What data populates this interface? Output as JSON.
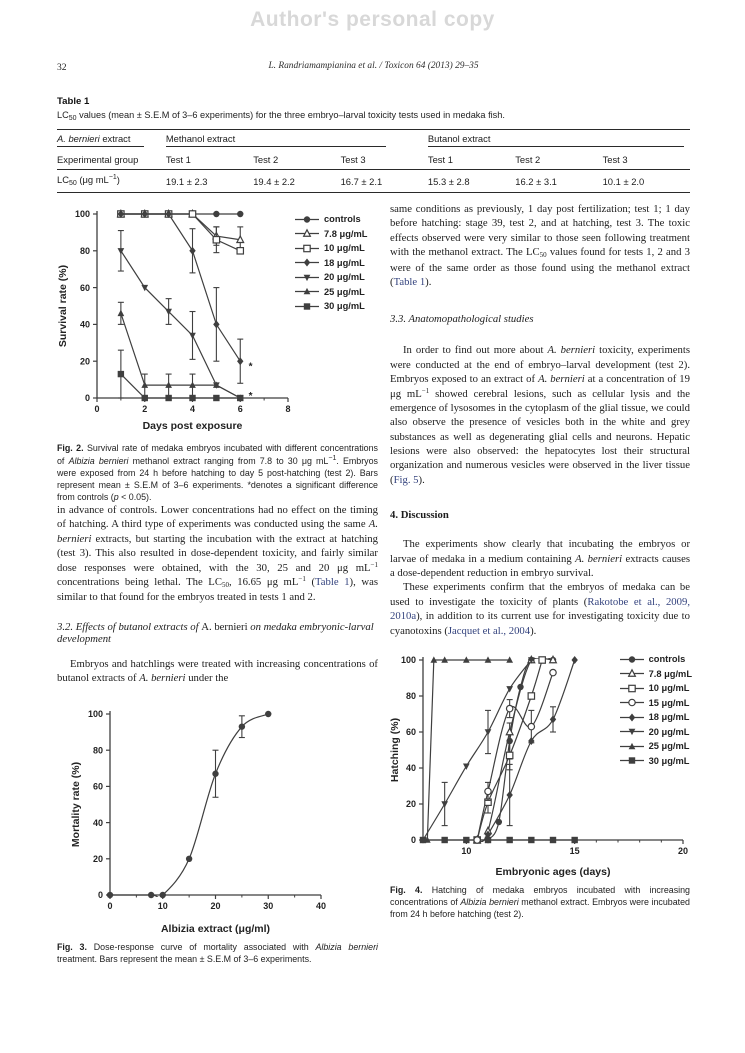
{
  "page": {
    "watermark": "Author's personal copy",
    "page_number": "32",
    "running_head": "L. Randriamampianina et al. / Toxicon 64 (2013) 29–35"
  },
  "table1": {
    "label": "Table 1",
    "caption": [
      {
        "t": "LC"
      },
      {
        "t": "50",
        "s": "sub"
      },
      {
        "t": " values (mean ± S.E.M of 3–6 experiments) for the three embryo–larval toxicity tests used in medaka fish."
      }
    ],
    "col0_header": [
      {
        "t": "A. bernieri",
        "s": "i"
      },
      {
        "t": " extract"
      }
    ],
    "group_methanol": "Methanol extract",
    "group_butanol": "Butanol extract",
    "sub_headers": [
      "Experimental group",
      "Test 1",
      "Test 2",
      "Test 3",
      "Test 1",
      "Test 2",
      "Test 3"
    ],
    "row_label": [
      {
        "t": "LC"
      },
      {
        "t": "50",
        "s": "sub"
      },
      {
        "t": " (μg mL"
      },
      {
        "t": "−1",
        "s": "sup"
      },
      {
        "t": ")"
      }
    ],
    "values": [
      "19.1 ± 2.3",
      "19.4 ± 2.2",
      "16.7 ± 2.1",
      "15.3 ± 2.8",
      "16.2 ± 3.1",
      "10.1 ± 2.0"
    ]
  },
  "left_col": {
    "fig2_caption": [
      {
        "t": "Fig. 2.",
        "s": "b"
      },
      {
        "t": " Survival rate of medaka embryos incubated with different concentrations of "
      },
      {
        "t": "Albizia bernieri",
        "s": "i"
      },
      {
        "t": " methanol extract ranging from 7.8 to 30 μg mL"
      },
      {
        "t": "−1",
        "s": "sup"
      },
      {
        "t": ". Embryos were exposed from 24 h before hatching to day 5 post-hatching (test 2). Bars represent mean ± S.E.M of 3–6 experiments. *denotes a significant difference from controls ("
      },
      {
        "t": "p",
        "s": "i"
      },
      {
        "t": " < 0.05)."
      }
    ],
    "para1": [
      {
        "t": "in advance of controls. Lower concentrations had no effect on the timing of hatching. A third type of experiments was conducted using the same "
      },
      {
        "t": "A. bernieri",
        "s": "i"
      },
      {
        "t": " extracts, but starting the incubation with the extract at hatching (test 3). This also resulted in dose-dependent toxicity, and fairly similar dose responses were obtained, with the 30, 25 and 20 μg mL"
      },
      {
        "t": "−1",
        "s": "sup"
      },
      {
        "t": " concentrations being lethal. The LC"
      },
      {
        "t": "50",
        "s": "sub"
      },
      {
        "t": ", 16.65 μg mL"
      },
      {
        "t": "−1",
        "s": "sup"
      },
      {
        "t": " ("
      },
      {
        "t": "Table 1",
        "s": "link"
      },
      {
        "t": "), was similar to that found for the embryos treated in tests 1 and 2."
      }
    ],
    "sec32_heading": [
      {
        "t": "3.2. Effects of butanol extracts of ",
        "s": "i"
      },
      {
        "t": "A. bernieri"
      },
      {
        "t": " on medaka embryonic-larval development",
        "s": "i"
      }
    ],
    "para2": [
      {
        "t": "Embryos and hatchlings were treated with increasing concentrations of butanol extracts of "
      },
      {
        "t": "A. bernieri",
        "s": "i"
      },
      {
        "t": " under the"
      }
    ],
    "fig3_caption": [
      {
        "t": "Fig. 3.",
        "s": "b"
      },
      {
        "t": " Dose-response curve of mortality associated with "
      },
      {
        "t": "Albizia bernieri",
        "s": "i"
      },
      {
        "t": " treatment. Bars represent the mean ± S.E.M of 3–6 experiments."
      }
    ]
  },
  "right_col": {
    "para1": [
      {
        "t": "same conditions as previously, 1 day post fertilization; test 1; 1 day before hatching: stage 39, test 2, and at hatching, test 3. The toxic effects observed were very similar to those seen following treatment with the methanol extract. The LC"
      },
      {
        "t": "50",
        "s": "sub"
      },
      {
        "t": " values found for tests 1, 2 and 3 were of the same order as those found using the methanol extract ("
      },
      {
        "t": "Table 1",
        "s": "link"
      },
      {
        "t": ")."
      }
    ],
    "sec33_heading": "3.3. Anatomopathological studies",
    "para2": [
      {
        "t": "In order to find out more about "
      },
      {
        "t": "A. bernieri",
        "s": "i"
      },
      {
        "t": " toxicity, experiments were conducted at the end of embryo–larval development (test 2). Embryos exposed to an extract of "
      },
      {
        "t": "A. bernieri",
        "s": "i"
      },
      {
        "t": " at a concentration of 19 μg mL"
      },
      {
        "t": "−1",
        "s": "sup"
      },
      {
        "t": " showed cerebral lesions, such as cellular lysis and the emergence of lysosomes in the cytoplasm of the glial tissue, we could also observe the presence of vesicles both in the white and grey substances as well as degenerating glial cells and neurons. Hepatic lesions were also observed: the hepatocytes lost their structural organization and numerous vesicles were observed in the liver tissue ("
      },
      {
        "t": "Fig. 5",
        "s": "link"
      },
      {
        "t": ")."
      }
    ],
    "sec4_heading": "4. Discussion",
    "para3": [
      {
        "t": "The experiments show clearly that incubating the embryos or larvae of medaka in a medium containing "
      },
      {
        "t": "A. bernieri",
        "s": "i"
      },
      {
        "t": " extracts causes a dose-dependent reduction in embryo survival."
      }
    ],
    "para4": [
      {
        "t": "These experiments confirm that the embryos of medaka can be used to investigate the toxicity of plants ("
      },
      {
        "t": "Rakotobe et al., 2009, 2010a",
        "s": "link"
      },
      {
        "t": "), in addition to its current use for investigating toxicity due to cyanotoxins ("
      },
      {
        "t": "Jacquet et al., 2004",
        "s": "link"
      },
      {
        "t": ")."
      }
    ],
    "fig4_caption": [
      {
        "t": "Fig. 4.",
        "s": "b"
      },
      {
        "t": " Hatching of medaka embryos incubated with increasing concentrations of "
      },
      {
        "t": "Albizia bernieri",
        "s": "i"
      },
      {
        "t": " methanol extract. Embryos were incubated from 24 h before hatching (test 2)."
      }
    ]
  },
  "chart_data": [
    {
      "id": "fig2",
      "type": "line",
      "xlabel": "Days post exposure",
      "ylabel": "Survival rate (%)",
      "xlim": [
        0,
        8
      ],
      "ylim": [
        0,
        100
      ],
      "xticks": [
        0,
        2,
        4,
        6,
        8
      ],
      "xminor": [
        1,
        3,
        5,
        7
      ],
      "yticks": [
        0,
        20,
        40,
        60,
        80,
        100
      ],
      "legend_position": "right-top",
      "series": [
        {
          "name": "controls",
          "marker": "circle",
          "x": [
            1,
            2,
            3,
            4,
            5,
            6
          ],
          "y": [
            100,
            100,
            100,
            100,
            100,
            100
          ],
          "err": [
            0,
            0,
            0,
            0,
            0,
            0
          ]
        },
        {
          "name": "7.8 μg/mL",
          "marker": "triangle-open",
          "x": [
            1,
            2,
            3,
            4,
            5,
            6
          ],
          "y": [
            100,
            100,
            100,
            100,
            88,
            86
          ],
          "err": [
            0,
            0,
            0,
            0,
            5,
            7
          ]
        },
        {
          "name": "10 μg/mL",
          "marker": "square-open",
          "x": [
            1,
            2,
            3,
            4,
            5,
            6
          ],
          "y": [
            100,
            100,
            100,
            100,
            86,
            80
          ],
          "err": [
            0,
            0,
            0,
            0,
            7,
            0
          ]
        },
        {
          "name": "18 μg/mL",
          "marker": "diamond",
          "x": [
            1,
            2,
            3,
            4,
            5,
            6
          ],
          "y": [
            100,
            100,
            100,
            80,
            40,
            20
          ],
          "err": [
            0,
            0,
            0,
            12,
            20,
            12
          ]
        },
        {
          "name": "20 μg/mL",
          "marker": "triangle-down",
          "x": [
            1,
            2,
            3,
            4,
            5,
            6
          ],
          "y": [
            80,
            60,
            47,
            34,
            7,
            0
          ],
          "err": [
            11,
            0,
            7,
            13,
            0,
            0
          ]
        },
        {
          "name": "25 μg/mL",
          "marker": "triangle",
          "x": [
            1,
            2,
            3,
            4,
            5,
            6
          ],
          "y": [
            46,
            7,
            7,
            7,
            7,
            0
          ],
          "err": [
            6,
            6,
            6,
            6,
            0,
            0
          ]
        },
        {
          "name": "30 μg/mL",
          "marker": "square",
          "x": [
            1,
            2,
            3,
            4,
            5,
            6
          ],
          "y": [
            13,
            0,
            0,
            0,
            0,
            0
          ],
          "err": [
            13,
            0,
            0,
            0,
            0,
            0
          ]
        }
      ],
      "annotations": [
        {
          "x": 6.35,
          "y": 17,
          "text": "*"
        },
        {
          "x": 6.35,
          "y": 1,
          "text": "*"
        }
      ]
    },
    {
      "id": "fig3",
      "type": "line",
      "xlabel": "Albizia extract (μg/ml)",
      "ylabel": "Mortality rate (%)",
      "xlim": [
        0,
        40
      ],
      "ylim": [
        0,
        100
      ],
      "xticks": [
        0,
        10,
        20,
        30,
        40
      ],
      "xminor": [
        5,
        15,
        25,
        35
      ],
      "yticks": [
        0,
        20,
        40,
        60,
        80,
        100
      ],
      "legend_position": "none",
      "series": [
        {
          "name": "mortality",
          "marker": "circle",
          "smooth": true,
          "x": [
            0,
            7.8,
            10,
            15,
            20,
            25,
            30
          ],
          "y": [
            0,
            0,
            0,
            20,
            67,
            93,
            100
          ],
          "err": [
            0,
            0,
            0,
            0,
            13,
            6,
            0
          ]
        }
      ]
    },
    {
      "id": "fig4",
      "type": "line",
      "xlabel": "Embryonic ages (days)",
      "ylabel": "Hatching (%)",
      "xlim": [
        8,
        20
      ],
      "ylim": [
        0,
        100
      ],
      "xticks": [
        10,
        15,
        20
      ],
      "xminor": [
        9,
        11,
        12,
        13,
        14,
        16,
        17,
        18,
        19
      ],
      "yticks": [
        0,
        20,
        40,
        60,
        80,
        100
      ],
      "legend_position": "right-top",
      "series": [
        {
          "name": "controls",
          "marker": "circle",
          "smooth": true,
          "x": [
            11,
            11.5,
            12,
            12.5,
            13,
            14
          ],
          "y": [
            0,
            10,
            55,
            85,
            100,
            100
          ],
          "err": [
            0,
            0,
            10,
            0,
            0,
            0
          ]
        },
        {
          "name": "7.8 μg/mL",
          "marker": "triangle-open",
          "smooth": true,
          "x": [
            10.5,
            11,
            12,
            13,
            14
          ],
          "y": [
            0,
            5,
            60,
            100,
            100
          ],
          "err": [
            0,
            0,
            0,
            0,
            0
          ]
        },
        {
          "name": "10 μg/mL",
          "marker": "square-open",
          "smooth": true,
          "x": [
            10.5,
            11,
            12,
            13,
            13.5
          ],
          "y": [
            0,
            21,
            47,
            80,
            100
          ],
          "err": [
            0,
            6,
            8,
            0,
            0
          ]
        },
        {
          "name": "15 μg/mL",
          "marker": "circle-open",
          "smooth": true,
          "x": [
            10.5,
            11,
            12,
            13,
            14
          ],
          "y": [
            0,
            27,
            73,
            63,
            93
          ],
          "err": [
            0,
            5,
            5,
            9,
            0
          ]
        },
        {
          "name": "18 μg/mL",
          "marker": "diamond",
          "smooth": true,
          "x": [
            11,
            12,
            13,
            14,
            15
          ],
          "y": [
            3,
            25,
            55,
            67,
            100
          ],
          "err": [
            0,
            17,
            0,
            7,
            0
          ]
        },
        {
          "name": "20 μg/mL",
          "marker": "triangle-down",
          "smooth": true,
          "x": [
            8,
            9,
            10,
            11,
            12,
            13
          ],
          "y": [
            0,
            20,
            41,
            60,
            84,
            100
          ],
          "err": [
            0,
            12,
            0,
            12,
            0,
            0
          ]
        },
        {
          "name": "25 μg/mL",
          "marker": "triangle",
          "x": [
            8.2,
            8.5,
            9,
            10,
            11,
            12
          ],
          "y": [
            0,
            100,
            100,
            100,
            100,
            100
          ],
          "err": [
            0,
            0,
            0,
            0,
            0,
            0
          ]
        },
        {
          "name": "30 μg/mL",
          "marker": "square",
          "x": [
            8,
            9,
            10,
            11,
            12,
            13,
            14,
            15
          ],
          "y": [
            0,
            0,
            0,
            0,
            0,
            0,
            0,
            0
          ],
          "err": [
            0,
            0,
            0,
            0,
            0,
            0,
            0,
            0
          ]
        }
      ]
    }
  ]
}
